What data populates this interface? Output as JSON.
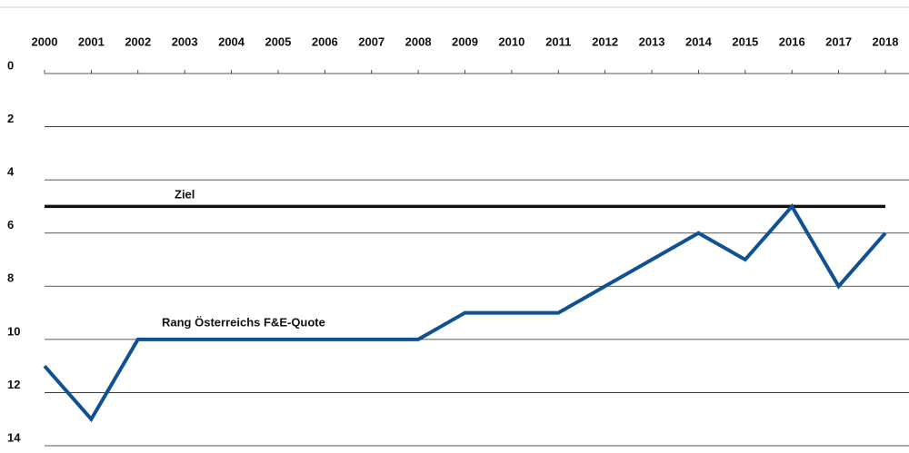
{
  "chart_data": {
    "type": "line",
    "categories": [
      "2000",
      "2001",
      "2002",
      "2003",
      "2004",
      "2005",
      "2006",
      "2007",
      "2008",
      "2009",
      "2010",
      "2011",
      "2012",
      "2013",
      "2014",
      "2015",
      "2016",
      "2017",
      "2018"
    ],
    "series": [
      {
        "name": "Ziel",
        "color": "#111111",
        "values": [
          5,
          5,
          5,
          5,
          5,
          5,
          5,
          5,
          5,
          5,
          5,
          5,
          5,
          5,
          5,
          5,
          5,
          5,
          5
        ]
      },
      {
        "name": "Rang Österreichs F&E-Quote",
        "color": "#0f5294",
        "values": [
          11,
          13,
          10,
          10,
          10,
          10,
          10,
          10,
          10,
          9,
          9,
          9,
          8,
          7,
          6,
          7,
          5,
          8,
          6
        ]
      }
    ],
    "ylim": [
      0,
      14
    ],
    "yticks": [
      0,
      2,
      4,
      6,
      8,
      10,
      12,
      14
    ],
    "y_inverted": true,
    "grid": true
  }
}
